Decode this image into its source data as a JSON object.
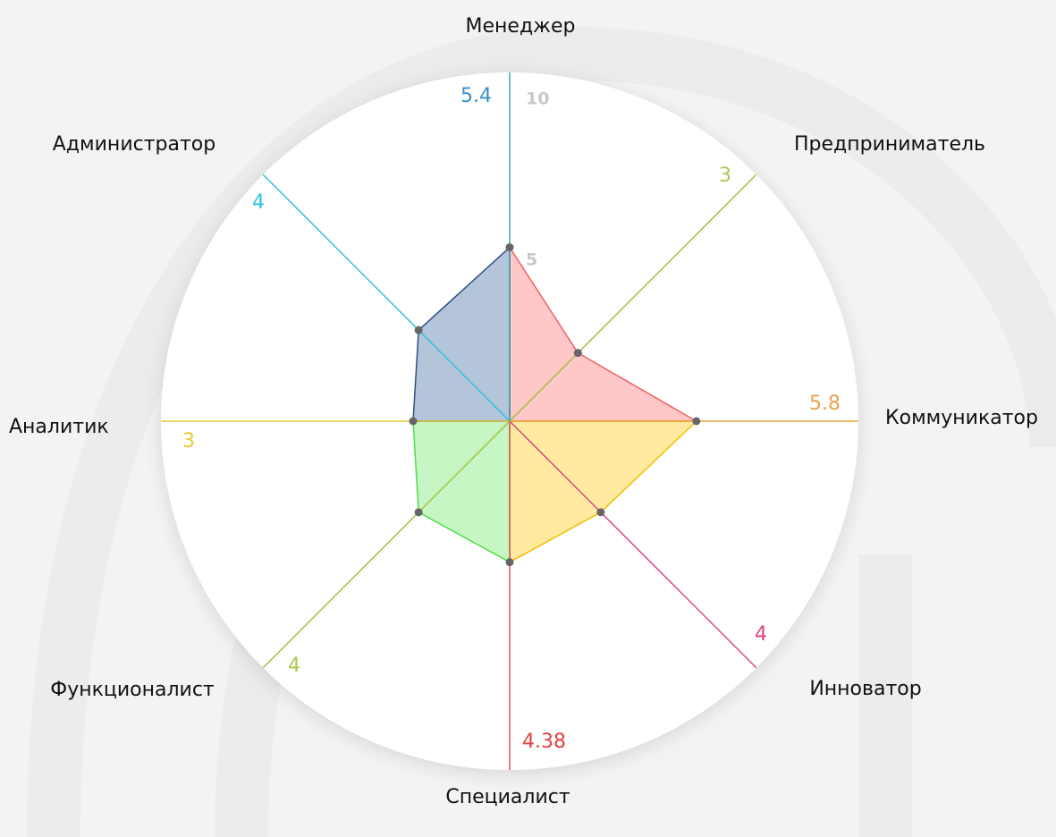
{
  "chart_data": {
    "type": "radar",
    "categories": [
      "Менеджер",
      "Предприниматель",
      "Коммуникатор",
      "Инноватор",
      "Специалист",
      "Функционалист",
      "Аналитик",
      "Администратор"
    ],
    "values": [
      5.4,
      3,
      5.8,
      4,
      4.38,
      4,
      3,
      4
    ],
    "axis_colors": [
      "#3aa8b0",
      "#a0c040",
      "#e8a040",
      "#e0408a",
      "#e05050",
      "#a0c040",
      "#f0c830",
      "#30c0e0"
    ],
    "label_colors": [
      "#3a90c8",
      "#a8c850",
      "#e8a050",
      "#e04080",
      "#e04040",
      "#a8c850",
      "#f0c830",
      "#30c0e0"
    ],
    "segment_colors": [
      [
        "#ffc4c4",
        "#f06060"
      ],
      [
        "#ffe99a",
        "#f0c000"
      ],
      [
        "#c2f5c0",
        "#50dd50"
      ],
      [
        "#b0c2d8",
        "#305080"
      ]
    ],
    "rlim": [
      0,
      10
    ],
    "rticks": [
      5,
      10
    ]
  }
}
